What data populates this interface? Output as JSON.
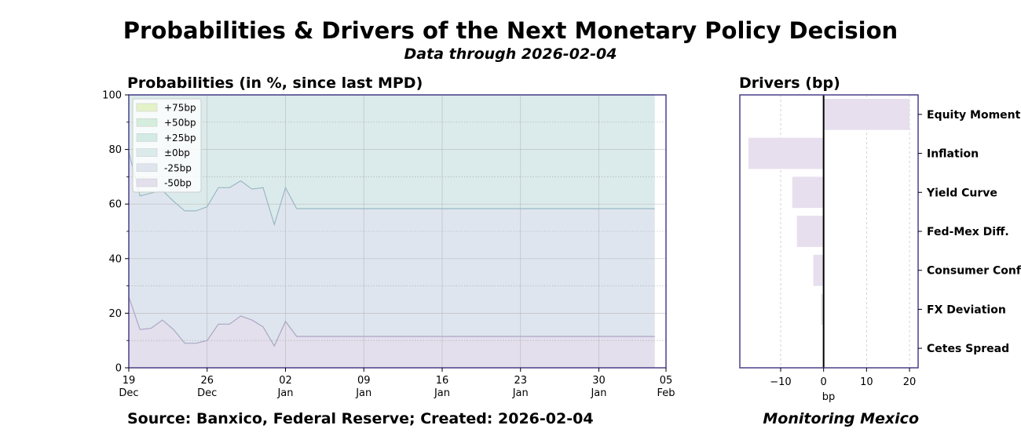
{
  "header": {
    "title": "Probabilities & Drivers of the Next Monetary Policy Decision",
    "subtitle": "Data through 2026-02-04"
  },
  "footer": {
    "source": "Source: Banxico, Federal Reserve; Created: 2026-02-04",
    "brand": "Monitoring Mexico"
  },
  "chart_data": [
    {
      "type": "area",
      "title": "Probabilities (in %, since last MPD)",
      "xlabel": "",
      "ylabel": "",
      "ylim": [
        0,
        100
      ],
      "xlim": [
        "2025-12-19",
        "2026-02-05"
      ],
      "grid": true,
      "legend_position": "top-left",
      "stacked": true,
      "x_ticks": [
        {
          "date": "2025-12-19",
          "day": "19",
          "month": "Dec"
        },
        {
          "date": "2025-12-26",
          "day": "26",
          "month": "Dec"
        },
        {
          "date": "2026-01-02",
          "day": "02",
          "month": "Jan"
        },
        {
          "date": "2026-01-09",
          "day": "09",
          "month": "Jan"
        },
        {
          "date": "2026-01-16",
          "day": "16",
          "month": "Jan"
        },
        {
          "date": "2026-01-23",
          "day": "23",
          "month": "Jan"
        },
        {
          "date": "2026-01-30",
          "day": "30",
          "month": "Jan"
        },
        {
          "date": "2026-02-05",
          "day": "05",
          "month": "Feb"
        }
      ],
      "y_ticks": [
        0,
        20,
        40,
        60,
        80,
        100
      ],
      "x": [
        "2025-12-19",
        "2025-12-20",
        "2025-12-21",
        "2025-12-22",
        "2025-12-23",
        "2025-12-24",
        "2025-12-25",
        "2025-12-26",
        "2025-12-27",
        "2025-12-28",
        "2025-12-29",
        "2025-12-30",
        "2025-12-31",
        "2026-01-01",
        "2026-01-02",
        "2026-01-03",
        "2026-01-04",
        "2026-01-05",
        "2026-01-06",
        "2026-01-07",
        "2026-01-08",
        "2026-01-09",
        "2026-01-10",
        "2026-01-11",
        "2026-01-12",
        "2026-01-13",
        "2026-01-14",
        "2026-01-15",
        "2026-01-16",
        "2026-01-17",
        "2026-01-18",
        "2026-01-19",
        "2026-01-20",
        "2026-01-21",
        "2026-01-22",
        "2026-01-23",
        "2026-01-24",
        "2026-01-25",
        "2026-01-26",
        "2026-01-27",
        "2026-01-28",
        "2026-01-29",
        "2026-01-30",
        "2026-01-31",
        "2026-02-01",
        "2026-02-02",
        "2026-02-03",
        "2026-02-04"
      ],
      "series": [
        {
          "name": "+75bp",
          "color": "#e4f2c8",
          "values": [
            0,
            0,
            0,
            0,
            0,
            0,
            0,
            0,
            0,
            0,
            0,
            0,
            0,
            0,
            0,
            0,
            0,
            0,
            0,
            0,
            0,
            0,
            0,
            0,
            0,
            0,
            0,
            0,
            0,
            0,
            0,
            0,
            0,
            0,
            0,
            0,
            0,
            0,
            0,
            0,
            0,
            0,
            0,
            0,
            0,
            0,
            0,
            0
          ]
        },
        {
          "name": "+50bp",
          "color": "#d4eddc",
          "values": [
            0,
            0,
            0,
            0,
            0,
            0,
            0,
            0,
            0,
            0,
            0,
            0,
            0,
            0,
            0,
            0,
            0,
            0,
            0,
            0,
            0,
            0,
            0,
            0,
            0,
            0,
            0,
            0,
            0,
            0,
            0,
            0,
            0,
            0,
            0,
            0,
            0,
            0,
            0,
            0,
            0,
            0,
            0,
            0,
            0,
            0,
            0,
            0
          ]
        },
        {
          "name": "+25bp",
          "color": "#d2ebe3",
          "values": [
            0,
            0,
            0,
            0,
            0,
            0,
            0,
            0,
            0,
            0,
            0,
            0,
            0,
            0,
            0,
            0,
            0,
            0,
            0,
            0,
            0,
            0,
            0,
            0,
            0,
            0,
            0,
            0,
            0,
            0,
            0,
            0,
            0,
            0,
            0,
            0,
            0,
            0,
            0,
            0,
            0,
            0,
            0,
            0,
            0,
            0,
            0,
            0
          ]
        },
        {
          "name": "±0bp",
          "color": "#dbebeb",
          "values": [
            21,
            37,
            36,
            35,
            39,
            42.5,
            42.5,
            41,
            34,
            34,
            31.5,
            34.5,
            34,
            47.5,
            34,
            41.7,
            41.7,
            41.7,
            41.7,
            41.7,
            41.7,
            41.7,
            41.7,
            41.7,
            41.7,
            41.7,
            41.7,
            41.7,
            41.7,
            41.7,
            41.7,
            41.7,
            41.7,
            41.7,
            41.7,
            41.7,
            41.7,
            41.7,
            41.7,
            41.7,
            41.7,
            41.7,
            41.7,
            41.7,
            41.7,
            41.7,
            41.7,
            41.7
          ]
        },
        {
          "name": "-25bp",
          "color": "#dfe5ee",
          "values": [
            53,
            49,
            49.5,
            47.5,
            47,
            48.5,
            48.5,
            49,
            50,
            50,
            49.5,
            48,
            51,
            44.5,
            49,
            46.8,
            46.8,
            46.8,
            46.8,
            46.8,
            46.8,
            46.8,
            46.8,
            46.8,
            46.8,
            46.8,
            46.8,
            46.8,
            46.8,
            46.8,
            46.8,
            46.8,
            46.8,
            46.8,
            46.8,
            46.8,
            46.8,
            46.8,
            46.8,
            46.8,
            46.8,
            46.8,
            46.8,
            46.8,
            46.8,
            46.8,
            46.8,
            46.8
          ]
        },
        {
          "name": "-50bp",
          "color": "#e3dfec",
          "values": [
            26,
            14,
            14.5,
            17.5,
            14,
            9,
            9,
            10,
            16,
            16,
            19,
            17.5,
            15,
            8,
            17,
            11.5,
            11.5,
            11.5,
            11.5,
            11.5,
            11.5,
            11.5,
            11.5,
            11.5,
            11.5,
            11.5,
            11.5,
            11.5,
            11.5,
            11.5,
            11.5,
            11.5,
            11.5,
            11.5,
            11.5,
            11.5,
            11.5,
            11.5,
            11.5,
            11.5,
            11.5,
            11.5,
            11.5,
            11.5,
            11.5,
            11.5,
            11.5,
            11.5
          ]
        }
      ]
    },
    {
      "type": "bar",
      "orientation": "horizontal",
      "title": "Drivers (bp)",
      "xlabel": "bp",
      "xlim": [
        -19.5,
        22
      ],
      "x_ticks": [
        -10,
        0,
        10,
        20
      ],
      "grid": true,
      "categories": [
        "Equity Momentum",
        "Inflation",
        "Yield Curve",
        "Fed-Mex Diff.",
        "Consumer Conf.",
        "FX Deviation",
        "Cetes Spread"
      ],
      "values": [
        20,
        -17.5,
        -7.3,
        -6.2,
        -2.4,
        -0.6,
        0
      ],
      "colors": [
        "#e7dfee",
        "#e7dfee",
        "#e7dfee",
        "#e7dfee",
        "#e7dfee",
        "#e6e6e6",
        "#e6e6e6"
      ]
    }
  ],
  "colors": {
    "frame": "#4a3f8a",
    "series_line": "#9ab8c4",
    "lower_line": "#a8a8c4",
    "zero_line": "#000000"
  }
}
